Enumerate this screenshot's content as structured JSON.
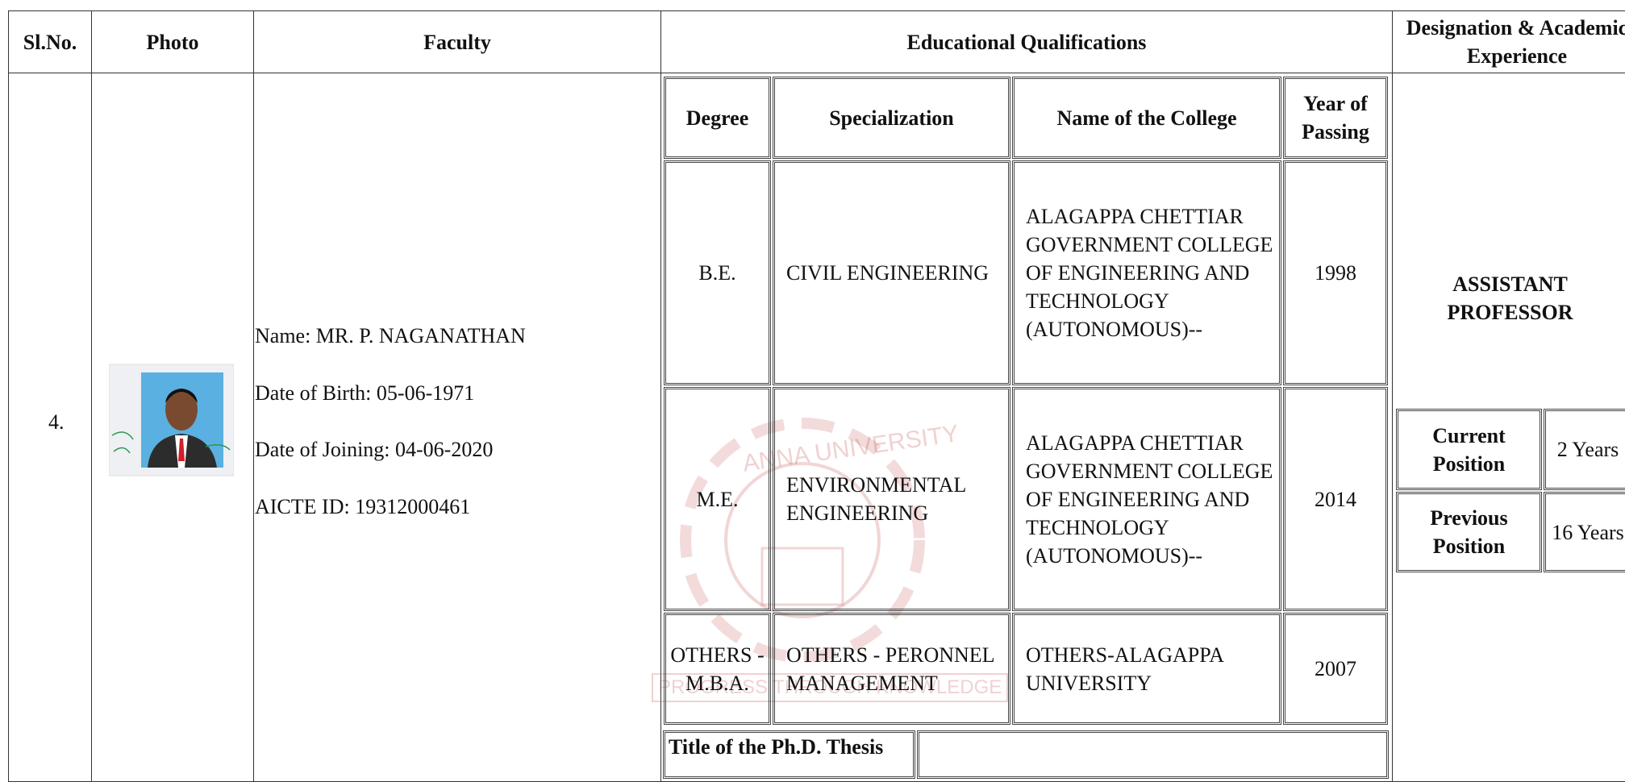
{
  "header": {
    "sl_no": "Sl.No.",
    "photo": "Photo",
    "faculty": "Faculty",
    "education": "Educational Qualifications",
    "designation": "Designation & Academic Experience"
  },
  "row": {
    "sl_no": "4.",
    "faculty": [
      "Name: MR. P. NAGANATHAN",
      "Date of Birth: 05-06-1971",
      "Date of Joining: 04-06-2020",
      "AICTE ID: 19312000461"
    ],
    "education": {
      "headers": [
        "Degree",
        "Specialization",
        "Name of the College",
        "Year of Passing"
      ],
      "rows": [
        [
          "B.E.",
          "CIVIL ENGINEERING",
          "ALAGAPPA CHETTIAR GOVERNMENT COLLEGE OF ENGINEERING AND TECHNOLOGY (AUTONOMOUS)--",
          "1998"
        ],
        [
          "M.E.",
          "ENVIRONMENTAL ENGINEERING",
          "ALAGAPPA CHETTIAR GOVERNMENT COLLEGE OF ENGINEERING AND TECHNOLOGY (AUTONOMOUS)--",
          "2014"
        ],
        [
          "OTHERS - M.B.A.",
          "OTHERS - PERONNEL MANAGEMENT",
          "OTHERS-ALAGAPPA UNIVERSITY",
          "2007"
        ]
      ],
      "thesis_label": "Title of the Ph.D. Thesis"
    },
    "designation": "ASSISTANT PROFESSOR",
    "experience": [
      {
        "label": "Current Position",
        "value": "2 Years"
      },
      {
        "label": "Previous Position",
        "value": "16 Years"
      }
    ]
  },
  "watermark": {
    "name": "ANNA UNIVERSITY",
    "motto": "PROGRESS THROUGH KNOWLEDGE"
  }
}
